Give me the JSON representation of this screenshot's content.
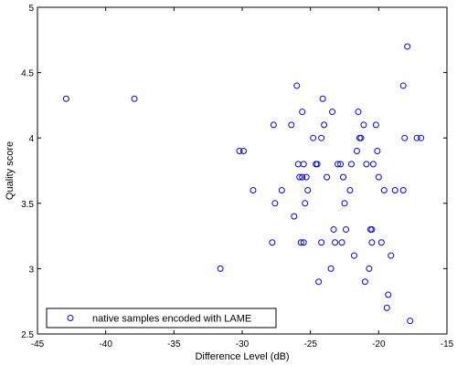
{
  "chart_data": {
    "type": "scatter",
    "xlabel": "Difference Level (dB)",
    "ylabel": "Quality score",
    "xlim": [
      -45,
      -15
    ],
    "ylim": [
      2.5,
      5
    ],
    "xticks": [
      -45,
      -40,
      -35,
      -30,
      -25,
      -20,
      -15
    ],
    "yticks": [
      2.5,
      3,
      3.5,
      4,
      4.5,
      5
    ],
    "grid": false,
    "legend_position": "bottom-left",
    "marker_color": "#0000ff",
    "series": [
      {
        "name": "native samples encoded with LAME",
        "marker": "circle-open",
        "points": [
          [
            -42.9,
            4.3
          ],
          [
            -37.9,
            4.3
          ],
          [
            -31.6,
            3.0
          ],
          [
            -30.2,
            3.9
          ],
          [
            -29.9,
            3.9
          ],
          [
            -29.2,
            3.6
          ],
          [
            -27.7,
            4.1
          ],
          [
            -27.6,
            3.5
          ],
          [
            -27.8,
            3.2
          ],
          [
            -27.1,
            3.6
          ],
          [
            -26.4,
            4.1
          ],
          [
            -26.2,
            3.4
          ],
          [
            -26.0,
            4.4
          ],
          [
            -25.9,
            3.8
          ],
          [
            -25.8,
            3.7
          ],
          [
            -25.6,
            3.7
          ],
          [
            -25.7,
            3.2
          ],
          [
            -25.5,
            3.2
          ],
          [
            -25.6,
            4.2
          ],
          [
            -25.5,
            3.8
          ],
          [
            -25.4,
            3.5
          ],
          [
            -25.3,
            3.7
          ],
          [
            -25.2,
            3.6
          ],
          [
            -24.8,
            4.0
          ],
          [
            -24.6,
            3.8
          ],
          [
            -24.5,
            3.8
          ],
          [
            -24.4,
            2.9
          ],
          [
            -24.2,
            4.0
          ],
          [
            -24.1,
            4.3
          ],
          [
            -24.2,
            3.2
          ],
          [
            -24.0,
            4.1
          ],
          [
            -23.8,
            3.7
          ],
          [
            -23.4,
            4.2
          ],
          [
            -23.5,
            3.0
          ],
          [
            -23.3,
            3.3
          ],
          [
            -23.2,
            3.2
          ],
          [
            -23.0,
            3.8
          ],
          [
            -22.8,
            3.8
          ],
          [
            -22.7,
            3.2
          ],
          [
            -22.6,
            3.7
          ],
          [
            -22.5,
            3.5
          ],
          [
            -22.4,
            3.3
          ],
          [
            -22.1,
            3.6
          ],
          [
            -22.0,
            3.8
          ],
          [
            -21.8,
            3.1
          ],
          [
            -21.6,
            3.9
          ],
          [
            -21.5,
            4.2
          ],
          [
            -21.4,
            4.0
          ],
          [
            -21.3,
            4.0
          ],
          [
            -21.1,
            4.1
          ],
          [
            -21.0,
            2.9
          ],
          [
            -20.9,
            3.8
          ],
          [
            -20.7,
            3.0
          ],
          [
            -20.6,
            3.3
          ],
          [
            -20.5,
            3.3
          ],
          [
            -20.5,
            3.2
          ],
          [
            -20.4,
            3.8
          ],
          [
            -20.2,
            4.1
          ],
          [
            -20.1,
            3.9
          ],
          [
            -20.0,
            3.7
          ],
          [
            -19.8,
            3.2
          ],
          [
            -19.6,
            3.6
          ],
          [
            -19.4,
            2.7
          ],
          [
            -19.3,
            2.8
          ],
          [
            -19.1,
            3.1
          ],
          [
            -18.8,
            3.6
          ],
          [
            -18.2,
            3.6
          ],
          [
            -18.2,
            4.4
          ],
          [
            -18.1,
            4.0
          ],
          [
            -17.9,
            4.7
          ],
          [
            -17.7,
            2.6
          ],
          [
            -17.2,
            4.0
          ],
          [
            -16.9,
            4.0
          ]
        ]
      }
    ]
  }
}
